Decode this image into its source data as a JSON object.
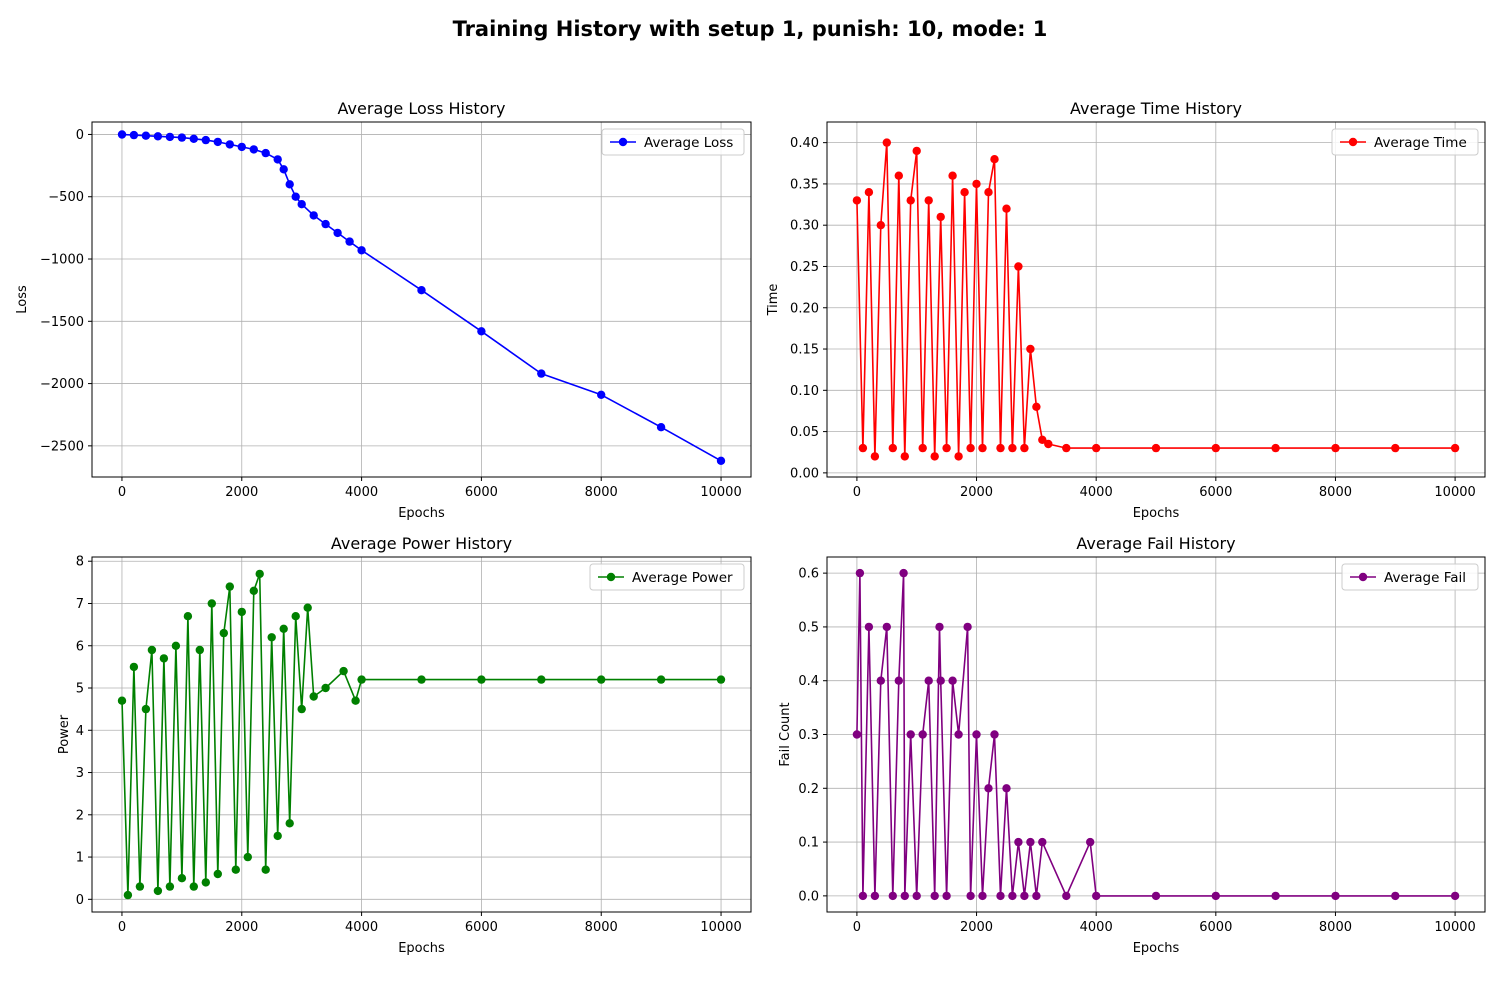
{
  "figure": {
    "suptitle": "Training History with setup 1, punish: 10, mode: 1"
  },
  "chart_data": [
    {
      "type": "line",
      "title": "Average Loss History",
      "xlabel": "Epochs",
      "ylabel": "Loss",
      "xlim": [
        -500,
        10500
      ],
      "ylim": [
        -2750,
        100
      ],
      "xticks": [
        0,
        2000,
        4000,
        6000,
        8000,
        10000
      ],
      "yticks": [
        0,
        -500,
        -1000,
        -1500,
        -2000,
        -2500
      ],
      "xtick_labels": [
        "0",
        "2000",
        "4000",
        "6000",
        "8000",
        "10000"
      ],
      "ytick_labels": [
        "0",
        "−500",
        "−1000",
        "−1500",
        "−2000",
        "−2500"
      ],
      "grid": true,
      "legend_loc": "upper right",
      "series": [
        {
          "name": "Average Loss",
          "color": "#0000ff",
          "marker": "circle",
          "x": [
            0,
            200,
            400,
            600,
            800,
            1000,
            1200,
            1400,
            1600,
            1800,
            2000,
            2200,
            2400,
            2600,
            2700,
            2800,
            2900,
            3000,
            3200,
            3400,
            3600,
            3800,
            4000,
            5000,
            6000,
            7000,
            8000,
            9000,
            10000
          ],
          "y": [
            0,
            -5,
            -10,
            -15,
            -20,
            -25,
            -35,
            -45,
            -60,
            -80,
            -100,
            -120,
            -150,
            -200,
            -280,
            -400,
            -500,
            -560,
            -650,
            -720,
            -790,
            -860,
            -930,
            -1250,
            -1580,
            -1920,
            -2090,
            -2350,
            -2620
          ]
        }
      ]
    },
    {
      "type": "line",
      "title": "Average Time History",
      "xlabel": "Epochs",
      "ylabel": "Time",
      "xlim": [
        -500,
        10500
      ],
      "ylim": [
        -0.005,
        0.425
      ],
      "xticks": [
        0,
        2000,
        4000,
        6000,
        8000,
        10000
      ],
      "yticks": [
        0.0,
        0.05,
        0.1,
        0.15,
        0.2,
        0.25,
        0.3,
        0.35,
        0.4
      ],
      "xtick_labels": [
        "0",
        "2000",
        "4000",
        "6000",
        "8000",
        "10000"
      ],
      "ytick_labels": [
        "0.00",
        "0.05",
        "0.10",
        "0.15",
        "0.20",
        "0.25",
        "0.30",
        "0.35",
        "0.40"
      ],
      "grid": true,
      "legend_loc": "upper right",
      "series": [
        {
          "name": "Average Time",
          "color": "#ff0000",
          "marker": "circle",
          "x": [
            0,
            100,
            200,
            300,
            400,
            500,
            600,
            700,
            800,
            900,
            1000,
            1100,
            1200,
            1300,
            1400,
            1500,
            1600,
            1700,
            1800,
            1900,
            2000,
            2100,
            2200,
            2300,
            2400,
            2500,
            2600,
            2700,
            2800,
            2900,
            3000,
            3100,
            3200,
            3500,
            4000,
            5000,
            6000,
            7000,
            8000,
            9000,
            10000
          ],
          "y": [
            0.33,
            0.03,
            0.34,
            0.02,
            0.3,
            0.4,
            0.03,
            0.36,
            0.02,
            0.33,
            0.39,
            0.03,
            0.33,
            0.02,
            0.31,
            0.03,
            0.36,
            0.02,
            0.34,
            0.03,
            0.35,
            0.03,
            0.34,
            0.38,
            0.03,
            0.32,
            0.03,
            0.25,
            0.03,
            0.15,
            0.08,
            0.04,
            0.035,
            0.03,
            0.03,
            0.03,
            0.03,
            0.03,
            0.03,
            0.03,
            0.03
          ]
        }
      ]
    },
    {
      "type": "line",
      "title": "Average Power History",
      "xlabel": "Epochs",
      "ylabel": "Power",
      "xlim": [
        -500,
        10500
      ],
      "ylim": [
        -0.3,
        8.1
      ],
      "xticks": [
        0,
        2000,
        4000,
        6000,
        8000,
        10000
      ],
      "yticks": [
        0,
        1,
        2,
        3,
        4,
        5,
        6,
        7,
        8
      ],
      "xtick_labels": [
        "0",
        "2000",
        "4000",
        "6000",
        "8000",
        "10000"
      ],
      "ytick_labels": [
        "0",
        "1",
        "2",
        "3",
        "4",
        "5",
        "6",
        "7",
        "8"
      ],
      "grid": true,
      "legend_loc": "upper right",
      "series": [
        {
          "name": "Average Power",
          "color": "#008000",
          "marker": "circle",
          "x": [
            0,
            100,
            200,
            300,
            400,
            500,
            600,
            700,
            800,
            900,
            1000,
            1100,
            1200,
            1300,
            1400,
            1500,
            1600,
            1700,
            1800,
            1900,
            2000,
            2100,
            2200,
            2300,
            2400,
            2500,
            2600,
            2700,
            2800,
            2900,
            3000,
            3100,
            3200,
            3400,
            3700,
            3900,
            4000,
            5000,
            6000,
            7000,
            8000,
            9000,
            10000
          ],
          "y": [
            4.7,
            0.1,
            5.5,
            0.3,
            4.5,
            5.9,
            0.2,
            5.7,
            0.3,
            6.0,
            0.5,
            6.7,
            0.3,
            5.9,
            0.4,
            7.0,
            0.6,
            6.3,
            7.4,
            0.7,
            6.8,
            1.0,
            7.3,
            7.7,
            0.7,
            6.2,
            1.5,
            6.4,
            1.8,
            6.7,
            4.5,
            6.9,
            4.8,
            5.0,
            5.4,
            4.7,
            5.2,
            5.2,
            5.2,
            5.2,
            5.2,
            5.2,
            5.2
          ]
        }
      ]
    },
    {
      "type": "line",
      "title": "Average Fail History",
      "xlabel": "Epochs",
      "ylabel": "Fail Count",
      "xlim": [
        -500,
        10500
      ],
      "ylim": [
        -0.03,
        0.63
      ],
      "xticks": [
        0,
        2000,
        4000,
        6000,
        8000,
        10000
      ],
      "yticks": [
        0.0,
        0.1,
        0.2,
        0.3,
        0.4,
        0.5,
        0.6
      ],
      "xtick_labels": [
        "0",
        "2000",
        "4000",
        "6000",
        "8000",
        "10000"
      ],
      "ytick_labels": [
        "0.0",
        "0.1",
        "0.2",
        "0.3",
        "0.4",
        "0.5",
        "0.6"
      ],
      "grid": true,
      "legend_loc": "upper right",
      "series": [
        {
          "name": "Average Fail",
          "color": "#800080",
          "marker": "circle",
          "x": [
            0,
            50,
            100,
            200,
            300,
            400,
            500,
            600,
            700,
            780,
            800,
            900,
            1000,
            1100,
            1200,
            1300,
            1380,
            1400,
            1500,
            1600,
            1700,
            1850,
            1900,
            2000,
            2100,
            2200,
            2300,
            2400,
            2500,
            2600,
            2700,
            2800,
            2900,
            3000,
            3100,
            3500,
            3900,
            4000,
            5000,
            6000,
            7000,
            8000,
            9000,
            10000
          ],
          "y": [
            0.3,
            0.6,
            0.0,
            0.5,
            0.0,
            0.4,
            0.5,
            0.0,
            0.4,
            0.6,
            0.0,
            0.3,
            0.0,
            0.3,
            0.4,
            0.0,
            0.5,
            0.4,
            0.0,
            0.4,
            0.3,
            0.5,
            0.0,
            0.3,
            0.0,
            0.2,
            0.3,
            0.0,
            0.2,
            0.0,
            0.1,
            0.0,
            0.1,
            0.0,
            0.1,
            0.0,
            0.1,
            0.0,
            0.0,
            0.0,
            0.0,
            0.0,
            0.0,
            0.0
          ]
        }
      ]
    }
  ]
}
